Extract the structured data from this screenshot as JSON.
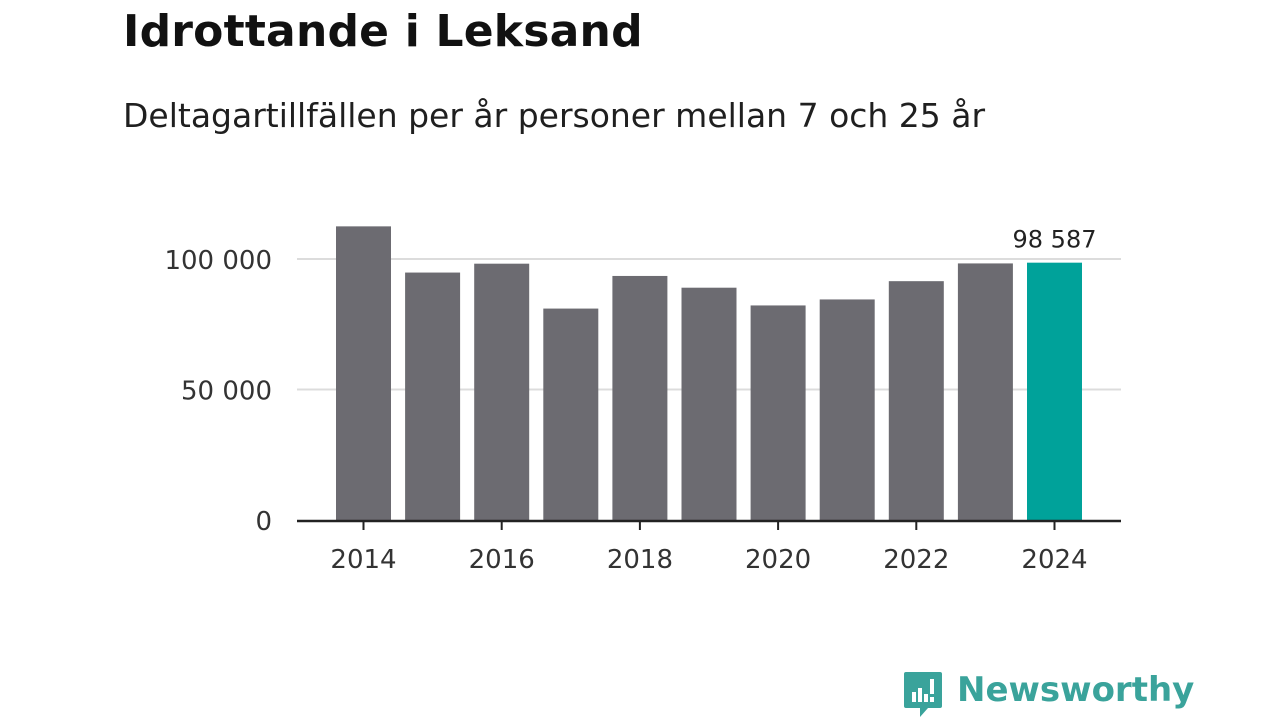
{
  "header": {
    "title": "Idrottande i Leksand",
    "subtitle": "Deltagartillfällen per år personer mellan 7 och 25 år"
  },
  "chart_data": {
    "type": "bar",
    "title": "Idrottande i Leksand",
    "subtitle": "Deltagartillfällen per år personer mellan 7 och 25 år",
    "categories": [
      "2014",
      "2015",
      "2016",
      "2017",
      "2018",
      "2019",
      "2020",
      "2021",
      "2022",
      "2023",
      "2024"
    ],
    "values": [
      112500,
      94800,
      98200,
      81000,
      93500,
      89000,
      82200,
      84500,
      91500,
      98300,
      98587
    ],
    "highlight_index": 10,
    "highlight_label": "98 587",
    "bar_color": "#6c6b71",
    "highlight_color": "#00a29a",
    "ylim": [
      0,
      118000
    ],
    "yticks": [
      {
        "value": 0,
        "label": "0"
      },
      {
        "value": 50000,
        "label": "50 000"
      },
      {
        "value": 100000,
        "label": "100 000"
      }
    ],
    "xticks": [
      "2014",
      "2016",
      "2018",
      "2020",
      "2022",
      "2024"
    ],
    "xlabel": "",
    "ylabel": "",
    "grid": true
  },
  "branding": {
    "logo_text": "Newsworthy",
    "logo_color": "#3aa39b"
  }
}
